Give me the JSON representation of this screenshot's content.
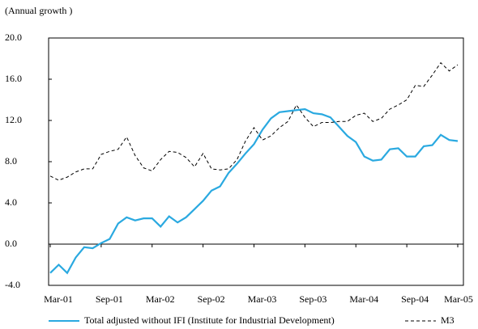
{
  "chart_data": {
    "type": "line",
    "y_label": "(Annual growth )",
    "categories": [
      "Mar-01",
      null,
      null,
      null,
      null,
      null,
      "Sep-01",
      null,
      null,
      null,
      null,
      null,
      "Mar-02",
      null,
      null,
      null,
      null,
      null,
      "Sep-02",
      null,
      null,
      null,
      null,
      null,
      "Mar-03",
      null,
      null,
      null,
      null,
      null,
      "Sep-03",
      null,
      null,
      null,
      null,
      null,
      "Mar-04",
      null,
      null,
      null,
      null,
      null,
      "Sep-04",
      null,
      null,
      null,
      null,
      null,
      "Mar-05"
    ],
    "series": [
      {
        "name": "Total adjusted without IFI (Institute for Industrial Development)",
        "color": "#2aa9e0",
        "dashed": false,
        "values": [
          -2.8,
          -2.0,
          -2.8,
          -1.3,
          -0.3,
          -0.4,
          0.1,
          0.5,
          2.0,
          2.6,
          2.3,
          2.5,
          2.5,
          1.7,
          2.7,
          2.1,
          2.6,
          3.4,
          4.2,
          5.2,
          5.6,
          6.9,
          7.8,
          8.8,
          9.7,
          11.1,
          12.2,
          12.8,
          12.9,
          13.0,
          13.1,
          12.7,
          12.6,
          12.3,
          11.4,
          10.5,
          9.9,
          8.5,
          8.1,
          8.2,
          9.2,
          9.3,
          8.5,
          8.5,
          9.5,
          9.6,
          10.6,
          10.1,
          10.0
        ]
      },
      {
        "name": "M3",
        "color": "#000000",
        "dashed": true,
        "values": [
          6.6,
          6.2,
          6.5,
          7.0,
          7.3,
          7.3,
          8.7,
          9.0,
          9.2,
          10.4,
          8.6,
          7.4,
          7.1,
          8.2,
          9.0,
          8.9,
          8.4,
          7.5,
          8.8,
          7.3,
          7.2,
          7.3,
          8.2,
          10.0,
          11.3,
          10.1,
          10.5,
          11.3,
          11.9,
          13.5,
          12.3,
          11.4,
          11.8,
          11.8,
          11.9,
          11.9,
          12.5,
          12.7,
          11.9,
          12.2,
          13.1,
          13.5,
          14.0,
          15.4,
          15.3,
          16.4,
          17.6,
          16.8,
          17.4
        ]
      }
    ],
    "ylim": [
      -4,
      20
    ],
    "yticks": [
      {
        "value": -4,
        "label": "-4.0"
      },
      {
        "value": 0,
        "label": "0.0"
      },
      {
        "value": 4,
        "label": "4.0"
      },
      {
        "value": 8,
        "label": "8.0"
      },
      {
        "value": 12,
        "label": "12.0"
      },
      {
        "value": 16,
        "label": "16.0"
      },
      {
        "value": 20,
        "label": "20.0"
      }
    ]
  }
}
